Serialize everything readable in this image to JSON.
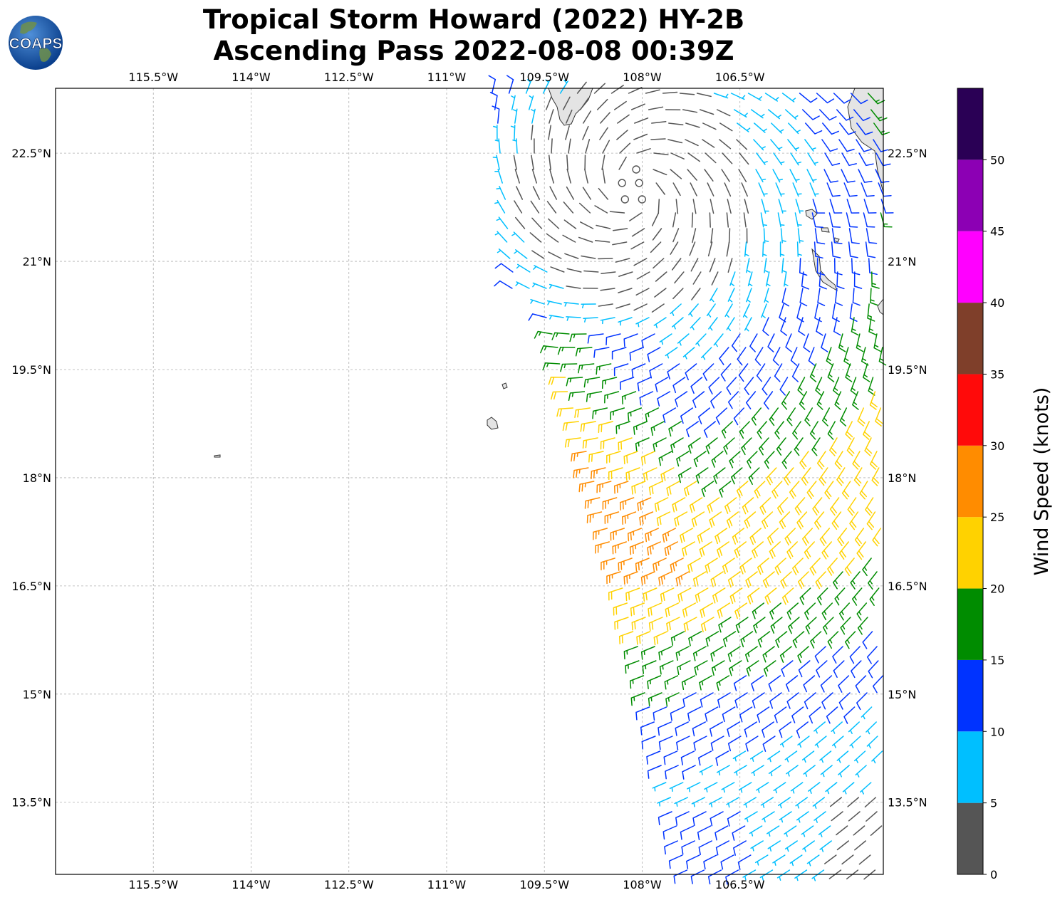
{
  "title": {
    "line1": "Tropical Storm Howard (2022) HY-2B",
    "line2": "Ascending Pass 2022-08-08 00:39Z"
  },
  "logo": {
    "text": "COAPS",
    "icon": "earth-globe-icon"
  },
  "map": {
    "lon_range": [
      -117.0,
      -104.3
    ],
    "lat_range": [
      12.5,
      23.4
    ],
    "lon_ticks": [
      {
        "value": -115.5,
        "label": "115.5°W"
      },
      {
        "value": -114.0,
        "label": "114°W"
      },
      {
        "value": -112.5,
        "label": "112.5°W"
      },
      {
        "value": -111.0,
        "label": "111°W"
      },
      {
        "value": -109.5,
        "label": "109.5°W"
      },
      {
        "value": -108.0,
        "label": "108°W"
      },
      {
        "value": -106.5,
        "label": "106.5°W"
      }
    ],
    "lat_ticks": [
      {
        "value": 22.5,
        "label": "22.5°N"
      },
      {
        "value": 21.0,
        "label": "21°N"
      },
      {
        "value": 19.5,
        "label": "19.5°N"
      },
      {
        "value": 18.0,
        "label": "18°N"
      },
      {
        "value": 16.5,
        "label": "16.5°N"
      },
      {
        "value": 15.0,
        "label": "15°N"
      },
      {
        "value": 13.5,
        "label": "13.5°N"
      }
    ],
    "grid": true,
    "storm_center": {
      "lon": -108.1,
      "lat": 22.0
    }
  },
  "colorbar": {
    "label": "Wind Speed (knots)",
    "ticks": [
      "0",
      "5",
      "10",
      "15",
      "20",
      "25",
      "30",
      "35",
      "40",
      "45",
      "50"
    ],
    "bins": [
      {
        "from": 0,
        "to": 5,
        "color": "#555555"
      },
      {
        "from": 5,
        "to": 10,
        "color": "#00bfff"
      },
      {
        "from": 10,
        "to": 15,
        "color": "#0033ff"
      },
      {
        "from": 15,
        "to": 20,
        "color": "#008c00"
      },
      {
        "from": 20,
        "to": 25,
        "color": "#ffd200"
      },
      {
        "from": 25,
        "to": 30,
        "color": "#ff8c00"
      },
      {
        "from": 30,
        "to": 35,
        "color": "#ff0a0a"
      },
      {
        "from": 35,
        "to": 40,
        "color": "#7f3f2a"
      },
      {
        "from": 40,
        "to": 45,
        "color": "#ff00ff"
      },
      {
        "from": 45,
        "to": 50,
        "color": "#8c00b4"
      },
      {
        "from": 50,
        "to": 55,
        "color": "#2a0055"
      }
    ]
  }
}
